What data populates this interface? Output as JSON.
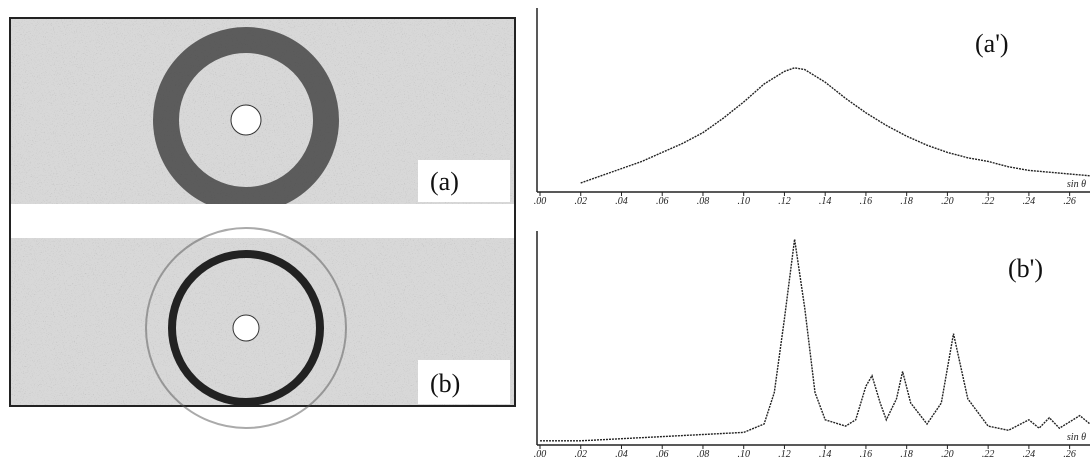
{
  "images": [
    {
      "label": "(a)"
    },
    {
      "label": "(b)"
    }
  ],
  "chart_data": [
    {
      "type": "line",
      "label": "(a')",
      "xlabel": "sin θ",
      "color": "#222",
      "x": [
        0.02,
        0.03,
        0.04,
        0.05,
        0.06,
        0.07,
        0.08,
        0.09,
        0.1,
        0.11,
        0.12,
        0.125,
        0.13,
        0.14,
        0.15,
        0.16,
        0.17,
        0.18,
        0.19,
        0.2,
        0.21,
        0.22,
        0.23,
        0.24,
        0.25,
        0.26,
        0.27
      ],
      "values": [
        5,
        9,
        13,
        17,
        22,
        27,
        33,
        41,
        50,
        60,
        67,
        69,
        68,
        61,
        52,
        44,
        37,
        31,
        26,
        22,
        19,
        17,
        14,
        12,
        11,
        10,
        9
      ],
      "xlim": [
        0,
        0.27
      ],
      "ylim": [
        0,
        100
      ],
      "xticks": [
        {
          "value": 0,
          "label": ".00"
        },
        {
          "value": 0.02,
          "label": ".02"
        },
        {
          "value": 0.04,
          "label": ".04"
        },
        {
          "value": 0.06,
          "label": ".06"
        },
        {
          "value": 0.08,
          "label": ".08"
        },
        {
          "value": 0.1,
          "label": ".10"
        },
        {
          "value": 0.12,
          "label": ".12"
        },
        {
          "value": 0.14,
          "label": ".14"
        },
        {
          "value": 0.16,
          "label": ".16"
        },
        {
          "value": 0.18,
          "label": ".18"
        },
        {
          "value": 0.2,
          "label": ".20"
        },
        {
          "value": 0.22,
          "label": ".22"
        },
        {
          "value": 0.24,
          "label": ".24"
        },
        {
          "value": 0.26,
          "label": ".26"
        }
      ]
    },
    {
      "type": "line",
      "label": "(b')",
      "xlabel": "sin θ",
      "color": "#222",
      "x": [
        0.0,
        0.02,
        0.04,
        0.06,
        0.08,
        0.1,
        0.11,
        0.115,
        0.12,
        0.125,
        0.13,
        0.135,
        0.14,
        0.15,
        0.155,
        0.16,
        0.163,
        0.167,
        0.17,
        0.175,
        0.178,
        0.182,
        0.19,
        0.197,
        0.203,
        0.21,
        0.22,
        0.23,
        0.24,
        0.245,
        0.25,
        0.255,
        0.265,
        0.27
      ],
      "values": [
        2,
        2,
        3,
        4,
        5,
        6,
        10,
        25,
        60,
        98,
        65,
        25,
        12,
        9,
        12,
        28,
        33,
        20,
        12,
        22,
        35,
        20,
        10,
        20,
        53,
        22,
        9,
        7,
        12,
        8,
        13,
        8,
        14,
        10
      ],
      "xlim": [
        0,
        0.27
      ],
      "ylim": [
        0,
        100
      ],
      "xticks": [
        {
          "value": 0,
          "label": ".00"
        },
        {
          "value": 0.02,
          "label": ".02"
        },
        {
          "value": 0.04,
          "label": ".04"
        },
        {
          "value": 0.06,
          "label": ".06"
        },
        {
          "value": 0.08,
          "label": ".08"
        },
        {
          "value": 0.1,
          "label": ".10"
        },
        {
          "value": 0.12,
          "label": ".12"
        },
        {
          "value": 0.14,
          "label": ".14"
        },
        {
          "value": 0.16,
          "label": ".16"
        },
        {
          "value": 0.18,
          "label": ".18"
        },
        {
          "value": 0.2,
          "label": ".20"
        },
        {
          "value": 0.22,
          "label": ".22"
        },
        {
          "value": 0.24,
          "label": ".24"
        },
        {
          "value": 0.26,
          "label": ".26"
        }
      ]
    }
  ]
}
